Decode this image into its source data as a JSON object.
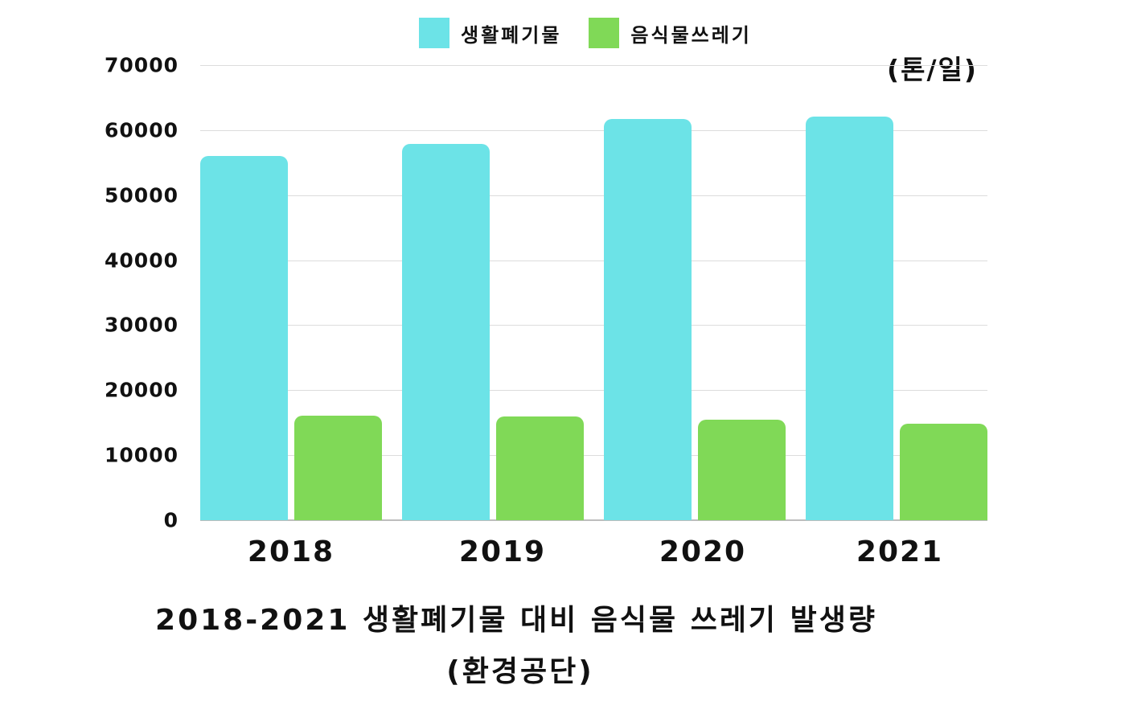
{
  "chart_data": {
    "type": "bar",
    "title": "2018-2021 생활폐기물 대비 음식물 쓰레기 발생량",
    "subtitle": "(환경공단)",
    "unit_label": "(톤/일)",
    "xlabel": "",
    "ylabel": "",
    "categories": [
      "2018",
      "2019",
      "2020",
      "2021"
    ],
    "series": [
      {
        "name": "생활폐기물",
        "color": "#6ce3e7",
        "values": [
          56000,
          57900,
          61700,
          62100
        ]
      },
      {
        "name": "음식물쓰레기",
        "color": "#80d957",
        "values": [
          16100,
          15900,
          15500,
          14800
        ]
      }
    ],
    "ylim": [
      0,
      70000
    ],
    "yticks": [
      0,
      10000,
      20000,
      30000,
      40000,
      50000,
      60000,
      70000
    ],
    "ytick_labels": [
      "0",
      "10000",
      "20000",
      "30000",
      "40000",
      "50000",
      "60000",
      "70000"
    ],
    "grid": true,
    "legend_position": "top"
  }
}
